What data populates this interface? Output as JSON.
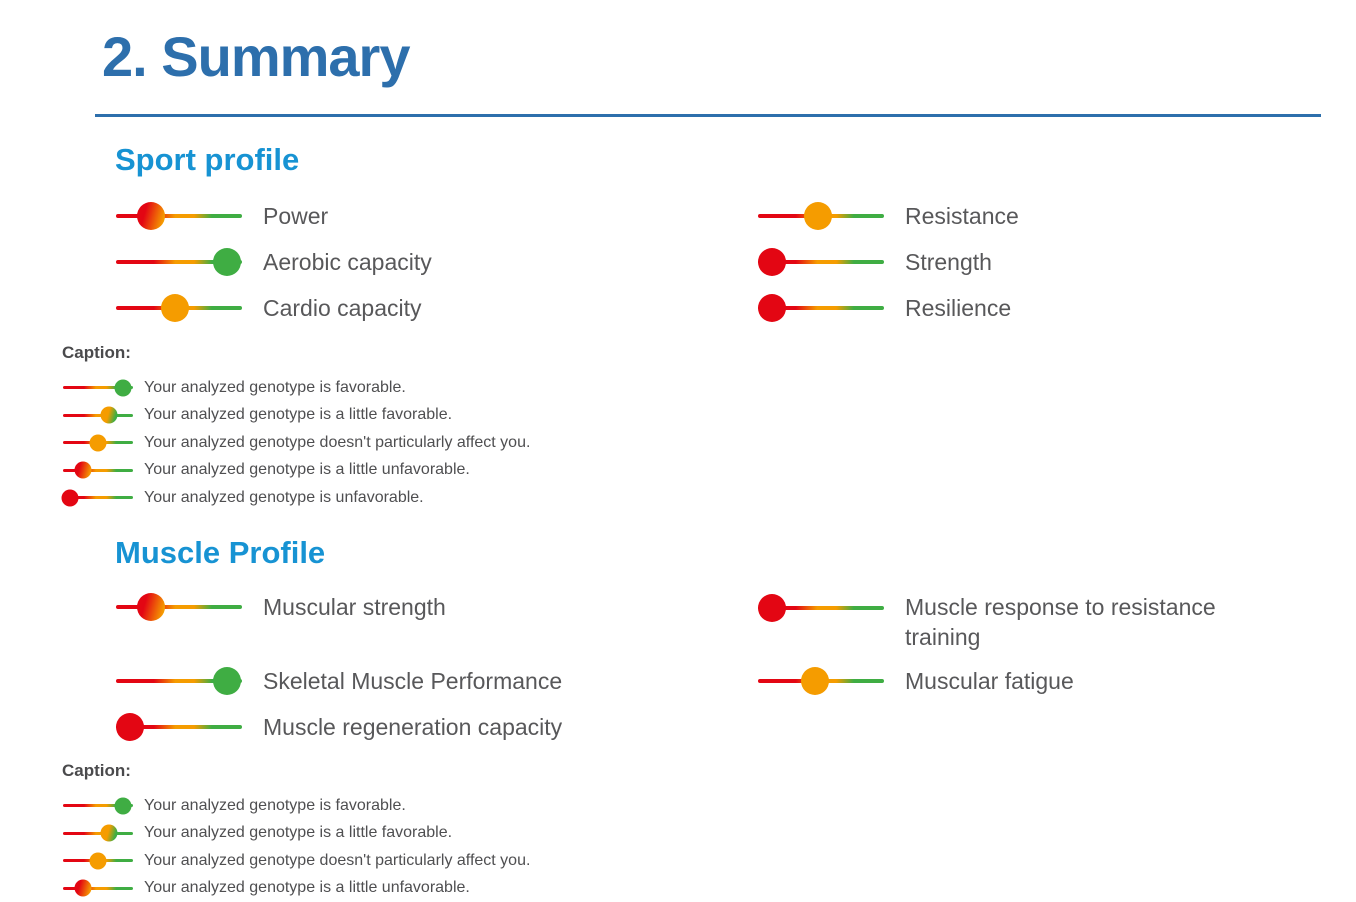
{
  "title": "2. Summary",
  "colors": {
    "title_blue": "#2d6fac",
    "section_blue": "#1793d3",
    "red": "#e30613",
    "orange": "#f59c00",
    "green": "#3fad43",
    "label_gray": "#58585a"
  },
  "sport": {
    "heading": "Sport profile",
    "rows_left": [
      {
        "label": "Power",
        "dot": "red-orange",
        "position": 28
      },
      {
        "label": "Aerobic capacity",
        "dot": "green",
        "position": 88
      },
      {
        "label": "Cardio capacity",
        "dot": "orange",
        "position": 47
      }
    ],
    "rows_right": [
      {
        "label": "Resistance",
        "dot": "orange",
        "position": 48
      },
      {
        "label": "Strength",
        "dot": "red",
        "position": 11
      },
      {
        "label": "Resilience",
        "dot": "red",
        "position": 11
      }
    ],
    "caption": {
      "title": "Caption:",
      "rows": [
        {
          "text": "Your analyzed genotype is favorable.",
          "dot": "green",
          "position": 86
        },
        {
          "text": "Your analyzed genotype is a little favorable.",
          "dot": "orange-green",
          "position": 66
        },
        {
          "text": "Your analyzed genotype doesn't particularly affect you.",
          "dot": "orange",
          "position": 50
        },
        {
          "text": "Your analyzed genotype is a little unfavorable.",
          "dot": "red-orange",
          "position": 28
        },
        {
          "text": "Your analyzed genotype is unfavorable.",
          "dot": "red",
          "position": 10
        }
      ]
    }
  },
  "muscle": {
    "heading": "Muscle Profile",
    "rows_left": [
      {
        "label": "Muscular strength",
        "dot": "red-orange",
        "position": 28
      },
      {
        "label": "Skeletal Muscle Performance",
        "dot": "green",
        "position": 88
      },
      {
        "label": "Muscle regeneration capacity",
        "dot": "red",
        "position": 11
      }
    ],
    "rows_right": [
      {
        "label": "Muscle response to resistance training",
        "dot": "red",
        "position": 11
      },
      {
        "label": "Muscular fatigue",
        "dot": "orange",
        "position": 45
      }
    ],
    "caption": {
      "title": "Caption:",
      "rows": [
        {
          "text": "Your analyzed genotype is favorable.",
          "dot": "green",
          "position": 86
        },
        {
          "text": "Your analyzed genotype is a little favorable.",
          "dot": "orange-green",
          "position": 66
        },
        {
          "text": "Your analyzed genotype doesn't particularly affect you.",
          "dot": "orange",
          "position": 50
        },
        {
          "text": "Your analyzed genotype is a little unfavorable.",
          "dot": "red-orange",
          "position": 28
        }
      ]
    }
  }
}
